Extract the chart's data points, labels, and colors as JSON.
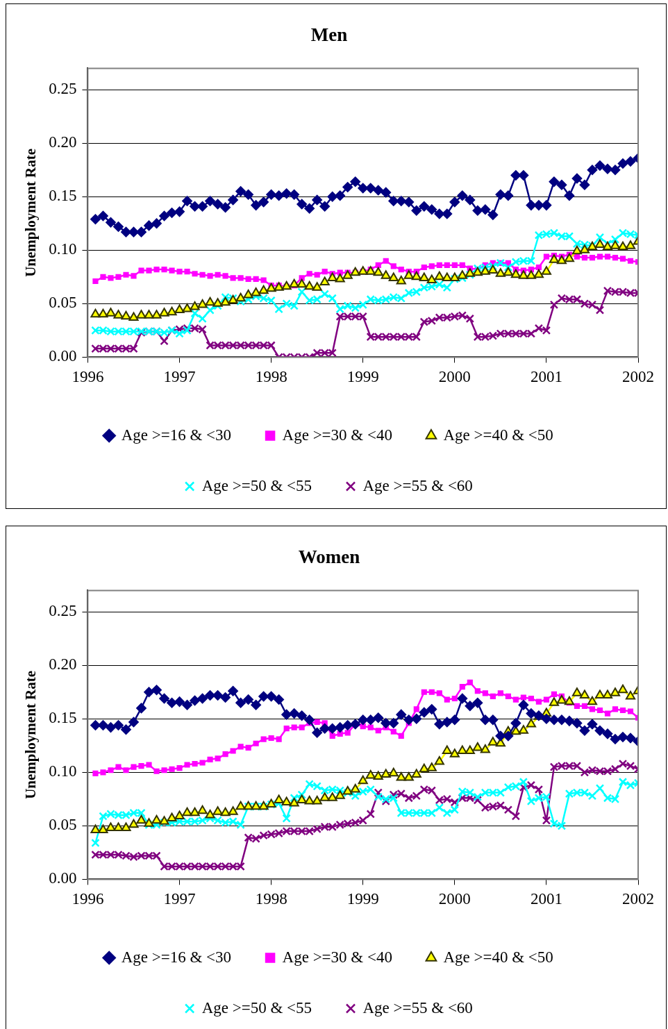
{
  "chart_data": [
    {
      "type": "line",
      "title": "Men",
      "ylabel": "Unemployment Rate",
      "legend": "bottom",
      "grid": "y",
      "xlim": [
        "1996",
        "2002"
      ],
      "xticks": [
        "1996",
        "1997",
        "1998",
        "1999",
        "2000",
        "2001",
        "2002"
      ],
      "ylim": [
        0,
        0.27
      ],
      "yticks": [
        {
          "value": 0,
          "label": "0.00"
        },
        {
          "value": 0.05,
          "label": "0.05"
        },
        {
          "value": 0.1,
          "label": "0.10"
        },
        {
          "value": 0.15,
          "label": "0.15"
        },
        {
          "value": 0.2,
          "label": "0.20"
        },
        {
          "value": 0.25,
          "label": "0.25"
        }
      ],
      "x": [
        "1996-02",
        "1996-03",
        "1996-04",
        "1996-05",
        "1996-06",
        "1996-07",
        "1996-08",
        "1996-09",
        "1996-10",
        "1996-11",
        "1996-12",
        "1997-01",
        "1997-02",
        "1997-03",
        "1997-04",
        "1997-05",
        "1997-06",
        "1997-07",
        "1997-08",
        "1997-09",
        "1997-10",
        "1997-11",
        "1997-12",
        "1998-01",
        "1998-02",
        "1998-03",
        "1998-04",
        "1998-05",
        "1998-06",
        "1998-07",
        "1998-08",
        "1998-09",
        "1998-10",
        "1998-11",
        "1998-12",
        "1999-01",
        "1999-02",
        "1999-03",
        "1999-04",
        "1999-05",
        "1999-06",
        "1999-07",
        "1999-08",
        "1999-09",
        "1999-10",
        "1999-11",
        "1999-12",
        "2000-01",
        "2000-02",
        "2000-03",
        "2000-04",
        "2000-05",
        "2000-06",
        "2000-07",
        "2000-08",
        "2000-09",
        "2000-10",
        "2000-11",
        "2000-12",
        "2001-01",
        "2001-02",
        "2001-03",
        "2001-04",
        "2001-05",
        "2001-06",
        "2001-07",
        "2001-08",
        "2001-09",
        "2001-10",
        "2001-11",
        "2001-12",
        "2002-01"
      ],
      "series": [
        {
          "name": "Age >=16 & <30",
          "color": "#000080",
          "marker": "diamond",
          "values": [
            0.129,
            0.132,
            0.126,
            0.122,
            0.117,
            0.117,
            0.117,
            0.123,
            0.125,
            0.132,
            0.135,
            0.136,
            0.146,
            0.141,
            0.141,
            0.146,
            0.143,
            0.14,
            0.147,
            0.155,
            0.152,
            0.142,
            0.145,
            0.152,
            0.151,
            0.153,
            0.152,
            0.143,
            0.139,
            0.147,
            0.141,
            0.15,
            0.151,
            0.159,
            0.164,
            0.158,
            0.158,
            0.156,
            0.154,
            0.146,
            0.146,
            0.145,
            0.137,
            0.141,
            0.138,
            0.134,
            0.134,
            0.145,
            0.151,
            0.147,
            0.137,
            0.138,
            0.133,
            0.152,
            0.151,
            0.17,
            0.17,
            0.142,
            0.142,
            0.142,
            0.164,
            0.161,
            0.151,
            0.167,
            0.161,
            0.175,
            0.179,
            0.176,
            0.175,
            0.181,
            0.183,
            0.186
          ]
        },
        {
          "name": "Age >=30 & <40",
          "color": "#ff00ff",
          "marker": "square",
          "values": [
            0.071,
            0.075,
            0.074,
            0.075,
            0.077,
            0.076,
            0.081,
            0.081,
            0.082,
            0.082,
            0.081,
            0.08,
            0.08,
            0.078,
            0.077,
            0.076,
            0.077,
            0.076,
            0.074,
            0.074,
            0.073,
            0.073,
            0.072,
            0.067,
            0.067,
            0.066,
            0.067,
            0.074,
            0.078,
            0.077,
            0.08,
            0.078,
            0.079,
            0.079,
            0.079,
            0.08,
            0.082,
            0.086,
            0.09,
            0.085,
            0.082,
            0.08,
            0.08,
            0.084,
            0.085,
            0.086,
            0.086,
            0.086,
            0.086,
            0.083,
            0.082,
            0.086,
            0.088,
            0.088,
            0.088,
            0.082,
            0.081,
            0.082,
            0.084,
            0.094,
            0.095,
            0.094,
            0.096,
            0.094,
            0.093,
            0.093,
            0.094,
            0.094,
            0.093,
            0.092,
            0.09,
            0.089
          ]
        },
        {
          "name": "Age >=40 & <50",
          "color": "#ffff00",
          "marker": "triangle",
          "values": [
            0.04,
            0.04,
            0.041,
            0.039,
            0.038,
            0.037,
            0.039,
            0.039,
            0.039,
            0.041,
            0.042,
            0.044,
            0.045,
            0.047,
            0.049,
            0.051,
            0.05,
            0.051,
            0.053,
            0.055,
            0.058,
            0.06,
            0.062,
            0.064,
            0.065,
            0.066,
            0.068,
            0.068,
            0.066,
            0.065,
            0.07,
            0.074,
            0.073,
            0.076,
            0.079,
            0.08,
            0.08,
            0.079,
            0.076,
            0.074,
            0.071,
            0.076,
            0.075,
            0.074,
            0.072,
            0.075,
            0.074,
            0.074,
            0.076,
            0.078,
            0.079,
            0.08,
            0.081,
            0.078,
            0.079,
            0.077,
            0.076,
            0.076,
            0.077,
            0.08,
            0.091,
            0.09,
            0.092,
            0.099,
            0.1,
            0.103,
            0.105,
            0.103,
            0.104,
            0.103,
            0.104,
            0.108
          ]
        },
        {
          "name": "Age >=50 & <55",
          "color": "#00ffff",
          "marker": "cross",
          "values": [
            0.025,
            0.025,
            0.024,
            0.024,
            0.024,
            0.024,
            0.024,
            0.024,
            0.024,
            0.023,
            0.025,
            0.022,
            0.025,
            0.041,
            0.036,
            0.044,
            0.048,
            0.056,
            0.055,
            0.052,
            0.054,
            0.057,
            0.055,
            0.053,
            0.045,
            0.05,
            0.048,
            0.061,
            0.053,
            0.054,
            0.059,
            0.055,
            0.045,
            0.048,
            0.046,
            0.049,
            0.054,
            0.053,
            0.054,
            0.056,
            0.055,
            0.06,
            0.061,
            0.065,
            0.066,
            0.068,
            0.065,
            0.073,
            0.074,
            0.077,
            0.083,
            0.084,
            0.085,
            0.088,
            0.084,
            0.089,
            0.09,
            0.09,
            0.114,
            0.115,
            0.116,
            0.113,
            0.113,
            0.106,
            0.105,
            0.104,
            0.112,
            0.106,
            0.11,
            0.116,
            0.115,
            0.114
          ]
        },
        {
          "name": "Age >=55 & <60",
          "color": "#800080",
          "marker": "cross",
          "values": [
            0.008,
            0.008,
            0.008,
            0.008,
            0.008,
            0.008,
            0.023,
            0.024,
            0.024,
            0.015,
            0.025,
            0.026,
            0.027,
            0.027,
            0.026,
            0.011,
            0.011,
            0.011,
            0.011,
            0.011,
            0.011,
            0.011,
            0.011,
            0.011,
            0.0,
            0.0,
            0.0,
            0.0,
            0.0,
            0.004,
            0.004,
            0.004,
            0.038,
            0.038,
            0.038,
            0.038,
            0.019,
            0.019,
            0.019,
            0.019,
            0.019,
            0.019,
            0.019,
            0.033,
            0.034,
            0.037,
            0.037,
            0.038,
            0.039,
            0.036,
            0.019,
            0.019,
            0.02,
            0.022,
            0.022,
            0.022,
            0.022,
            0.022,
            0.027,
            0.025,
            0.049,
            0.055,
            0.054,
            0.054,
            0.05,
            0.049,
            0.044,
            0.062,
            0.061,
            0.061,
            0.06,
            0.06
          ]
        }
      ]
    },
    {
      "type": "line",
      "title": "Women",
      "ylabel": "Unemployment Rate",
      "legend": "bottom",
      "grid": "y",
      "xlim": [
        "1996",
        "2002"
      ],
      "xticks": [
        "1996",
        "1997",
        "1998",
        "1999",
        "2000",
        "2001",
        "2002"
      ],
      "ylim": [
        0,
        0.27
      ],
      "yticks": [
        {
          "value": 0,
          "label": "0.00"
        },
        {
          "value": 0.05,
          "label": "0.05"
        },
        {
          "value": 0.1,
          "label": "0.10"
        },
        {
          "value": 0.15,
          "label": "0.15"
        },
        {
          "value": 0.2,
          "label": "0.20"
        },
        {
          "value": 0.25,
          "label": "0.25"
        }
      ],
      "x": [
        "1996-02",
        "1996-03",
        "1996-04",
        "1996-05",
        "1996-06",
        "1996-07",
        "1996-08",
        "1996-09",
        "1996-10",
        "1996-11",
        "1996-12",
        "1997-01",
        "1997-02",
        "1997-03",
        "1997-04",
        "1997-05",
        "1997-06",
        "1997-07",
        "1997-08",
        "1997-09",
        "1997-10",
        "1997-11",
        "1997-12",
        "1998-01",
        "1998-02",
        "1998-03",
        "1998-04",
        "1998-05",
        "1998-06",
        "1998-07",
        "1998-08",
        "1998-09",
        "1998-10",
        "1998-11",
        "1998-12",
        "1999-01",
        "1999-02",
        "1999-03",
        "1999-04",
        "1999-05",
        "1999-06",
        "1999-07",
        "1999-08",
        "1999-09",
        "1999-10",
        "1999-11",
        "1999-12",
        "2000-01",
        "2000-02",
        "2000-03",
        "2000-04",
        "2000-05",
        "2000-06",
        "2000-07",
        "2000-08",
        "2000-09",
        "2000-10",
        "2000-11",
        "2000-12",
        "2001-01",
        "2001-02",
        "2001-03",
        "2001-04",
        "2001-05",
        "2001-06",
        "2001-07",
        "2001-08",
        "2001-09",
        "2001-10",
        "2001-11",
        "2001-12",
        "2002-01"
      ],
      "series": [
        {
          "name": "Age >=16 & <30",
          "color": "#000080",
          "marker": "diamond",
          "values": [
            0.144,
            0.144,
            0.142,
            0.144,
            0.14,
            0.147,
            0.16,
            0.175,
            0.177,
            0.169,
            0.165,
            0.166,
            0.163,
            0.167,
            0.169,
            0.172,
            0.172,
            0.17,
            0.176,
            0.165,
            0.168,
            0.163,
            0.171,
            0.171,
            0.168,
            0.154,
            0.155,
            0.153,
            0.149,
            0.137,
            0.141,
            0.141,
            0.142,
            0.144,
            0.145,
            0.149,
            0.149,
            0.151,
            0.146,
            0.146,
            0.154,
            0.149,
            0.15,
            0.156,
            0.159,
            0.145,
            0.147,
            0.149,
            0.169,
            0.162,
            0.165,
            0.149,
            0.149,
            0.134,
            0.134,
            0.146,
            0.163,
            0.155,
            0.153,
            0.15,
            0.149,
            0.149,
            0.148,
            0.146,
            0.139,
            0.145,
            0.139,
            0.136,
            0.131,
            0.133,
            0.132,
            0.129
          ]
        },
        {
          "name": "Age >=30 & <40",
          "color": "#ff00ff",
          "marker": "square",
          "values": [
            0.099,
            0.1,
            0.102,
            0.105,
            0.102,
            0.105,
            0.106,
            0.107,
            0.101,
            0.102,
            0.103,
            0.104,
            0.107,
            0.108,
            0.109,
            0.112,
            0.113,
            0.117,
            0.12,
            0.124,
            0.123,
            0.127,
            0.131,
            0.132,
            0.131,
            0.141,
            0.142,
            0.142,
            0.146,
            0.147,
            0.146,
            0.134,
            0.136,
            0.137,
            0.145,
            0.143,
            0.142,
            0.139,
            0.142,
            0.138,
            0.134,
            0.146,
            0.159,
            0.175,
            0.175,
            0.174,
            0.168,
            0.169,
            0.18,
            0.184,
            0.176,
            0.174,
            0.171,
            0.174,
            0.171,
            0.168,
            0.17,
            0.169,
            0.166,
            0.168,
            0.173,
            0.171,
            0.165,
            0.162,
            0.162,
            0.159,
            0.158,
            0.155,
            0.159,
            0.158,
            0.157,
            0.151
          ]
        },
        {
          "name": "Age >=40 & <50",
          "color": "#ffff00",
          "marker": "triangle",
          "values": [
            0.046,
            0.046,
            0.048,
            0.048,
            0.048,
            0.051,
            0.055,
            0.052,
            0.055,
            0.054,
            0.057,
            0.059,
            0.062,
            0.062,
            0.064,
            0.06,
            0.063,
            0.062,
            0.063,
            0.068,
            0.068,
            0.068,
            0.068,
            0.07,
            0.074,
            0.072,
            0.071,
            0.074,
            0.073,
            0.073,
            0.076,
            0.076,
            0.078,
            0.082,
            0.084,
            0.092,
            0.097,
            0.096,
            0.098,
            0.099,
            0.095,
            0.095,
            0.098,
            0.103,
            0.104,
            0.11,
            0.12,
            0.117,
            0.12,
            0.12,
            0.123,
            0.121,
            0.128,
            0.127,
            0.138,
            0.138,
            0.139,
            0.145,
            0.152,
            0.155,
            0.165,
            0.167,
            0.166,
            0.174,
            0.172,
            0.166,
            0.172,
            0.172,
            0.174,
            0.177,
            0.171,
            0.176
          ]
        },
        {
          "name": "Age >=50 & <55",
          "color": "#00ffff",
          "marker": "cross",
          "values": [
            0.034,
            0.059,
            0.061,
            0.06,
            0.06,
            0.062,
            0.062,
            0.051,
            0.051,
            0.053,
            0.053,
            0.054,
            0.054,
            0.054,
            0.055,
            0.057,
            0.055,
            0.053,
            0.054,
            0.051,
            0.068,
            0.068,
            0.068,
            0.07,
            0.071,
            0.057,
            0.076,
            0.079,
            0.089,
            0.087,
            0.083,
            0.084,
            0.083,
            0.081,
            0.078,
            0.082,
            0.084,
            0.077,
            0.075,
            0.076,
            0.062,
            0.062,
            0.062,
            0.062,
            0.062,
            0.067,
            0.062,
            0.065,
            0.082,
            0.081,
            0.077,
            0.081,
            0.081,
            0.081,
            0.086,
            0.087,
            0.091,
            0.073,
            0.076,
            0.077,
            0.052,
            0.05,
            0.08,
            0.081,
            0.081,
            0.078,
            0.085,
            0.076,
            0.075,
            0.091,
            0.088,
            0.09
          ]
        },
        {
          "name": "Age >=55 & <60",
          "color": "#800080",
          "marker": "cross",
          "values": [
            0.023,
            0.023,
            0.023,
            0.023,
            0.022,
            0.021,
            0.022,
            0.022,
            0.022,
            0.012,
            0.012,
            0.012,
            0.012,
            0.012,
            0.012,
            0.012,
            0.012,
            0.012,
            0.012,
            0.012,
            0.039,
            0.038,
            0.041,
            0.042,
            0.043,
            0.045,
            0.045,
            0.045,
            0.045,
            0.047,
            0.049,
            0.049,
            0.051,
            0.052,
            0.053,
            0.055,
            0.061,
            0.081,
            0.073,
            0.079,
            0.08,
            0.076,
            0.078,
            0.084,
            0.083,
            0.074,
            0.075,
            0.072,
            0.076,
            0.076,
            0.074,
            0.067,
            0.068,
            0.069,
            0.065,
            0.059,
            0.086,
            0.088,
            0.084,
            0.055,
            0.105,
            0.106,
            0.106,
            0.106,
            0.1,
            0.102,
            0.101,
            0.101,
            0.103,
            0.108,
            0.106,
            0.103
          ]
        }
      ]
    }
  ]
}
